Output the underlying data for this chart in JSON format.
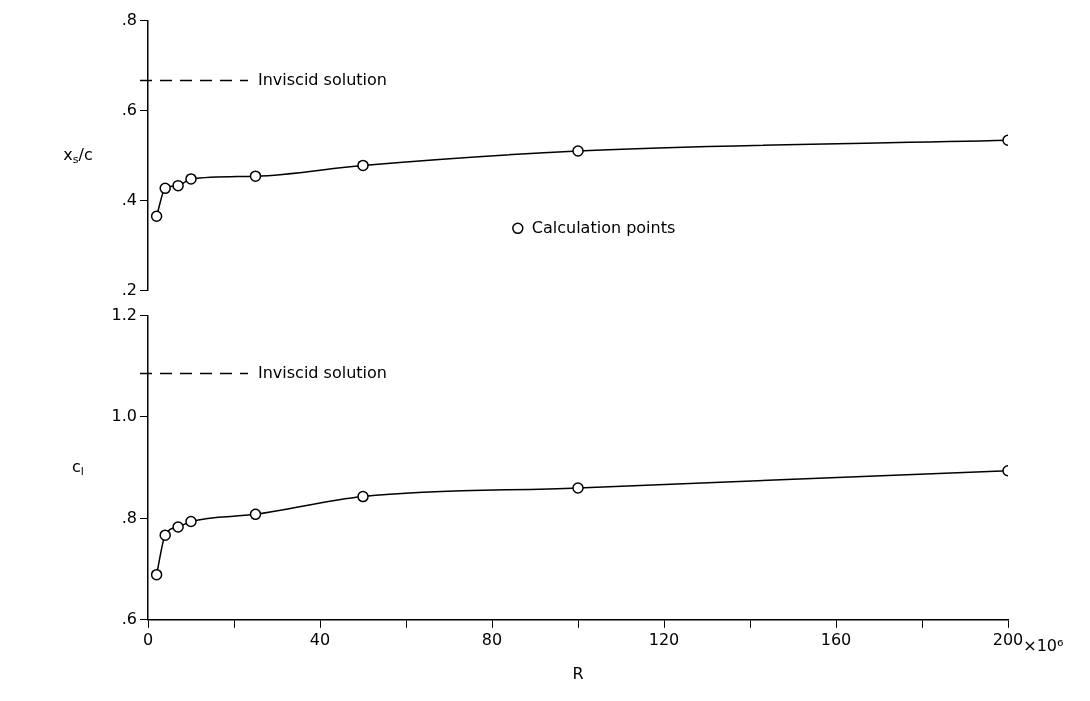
{
  "chart_data": [
    {
      "type": "line",
      "ylabel": "x$_{s}$/c",
      "x": [
        2,
        4,
        7,
        10,
        25,
        50,
        100,
        200
      ],
      "series": [
        {
          "name": "Calculation points",
          "color": "#000000",
          "values": [
            0.365,
            0.427,
            0.433,
            0.448,
            0.454,
            0.478,
            0.51,
            0.534
          ]
        }
      ],
      "xlim": [
        0,
        200
      ],
      "ylim": [
        0.2,
        0.8
      ],
      "yticks": [
        {
          "value": 0.2,
          "label": ".2"
        },
        {
          "value": 0.4,
          "label": ".4"
        },
        {
          "value": 0.6,
          "label": ".6"
        },
        {
          "value": 0.8,
          "label": ".8"
        }
      ],
      "ref_lines": [
        {
          "axis": "y",
          "value": 0.667,
          "label": "Inviscid solution",
          "color": "#000000",
          "line_style": "dashed"
        }
      ],
      "tick_labels": "y",
      "grid": false,
      "legend": "right",
      "marker": "circle",
      "line_style": "solid"
    },
    {
      "type": "line",
      "xlabel": "R",
      "ylabel": "c$_{l}$",
      "x": [
        2,
        4,
        7,
        10,
        25,
        50,
        100,
        200
      ],
      "series": [
        {
          "color": "#000000",
          "values": [
            0.689,
            0.767,
            0.783,
            0.794,
            0.808,
            0.843,
            0.86,
            0.894
          ]
        }
      ],
      "xlim": [
        0,
        200
      ],
      "ylim": [
        0.6,
        1.2
      ],
      "xticks": [
        0,
        {
          "value": 20,
          "label": null
        },
        40,
        {
          "value": 60,
          "label": null
        },
        80,
        {
          "value": 100,
          "label": null
        },
        120,
        {
          "value": 140,
          "label": null
        },
        160,
        {
          "value": 180,
          "label": null
        },
        200
      ],
      "yticks": [
        {
          "value": 0.6,
          "label": ".6"
        },
        {
          "value": 0.8,
          "label": ".8"
        },
        {
          "value": 1.0,
          "label": "1.0"
        },
        1.2
      ],
      "annotations": [
        "×10⁶"
      ],
      "ref_lines": [
        {
          "axis": "y",
          "value": 1.086,
          "label": "Inviscid solution",
          "color": "#000000",
          "line_style": "dashed"
        }
      ],
      "grid": false,
      "marker": "circle",
      "line_style": "solid"
    }
  ]
}
